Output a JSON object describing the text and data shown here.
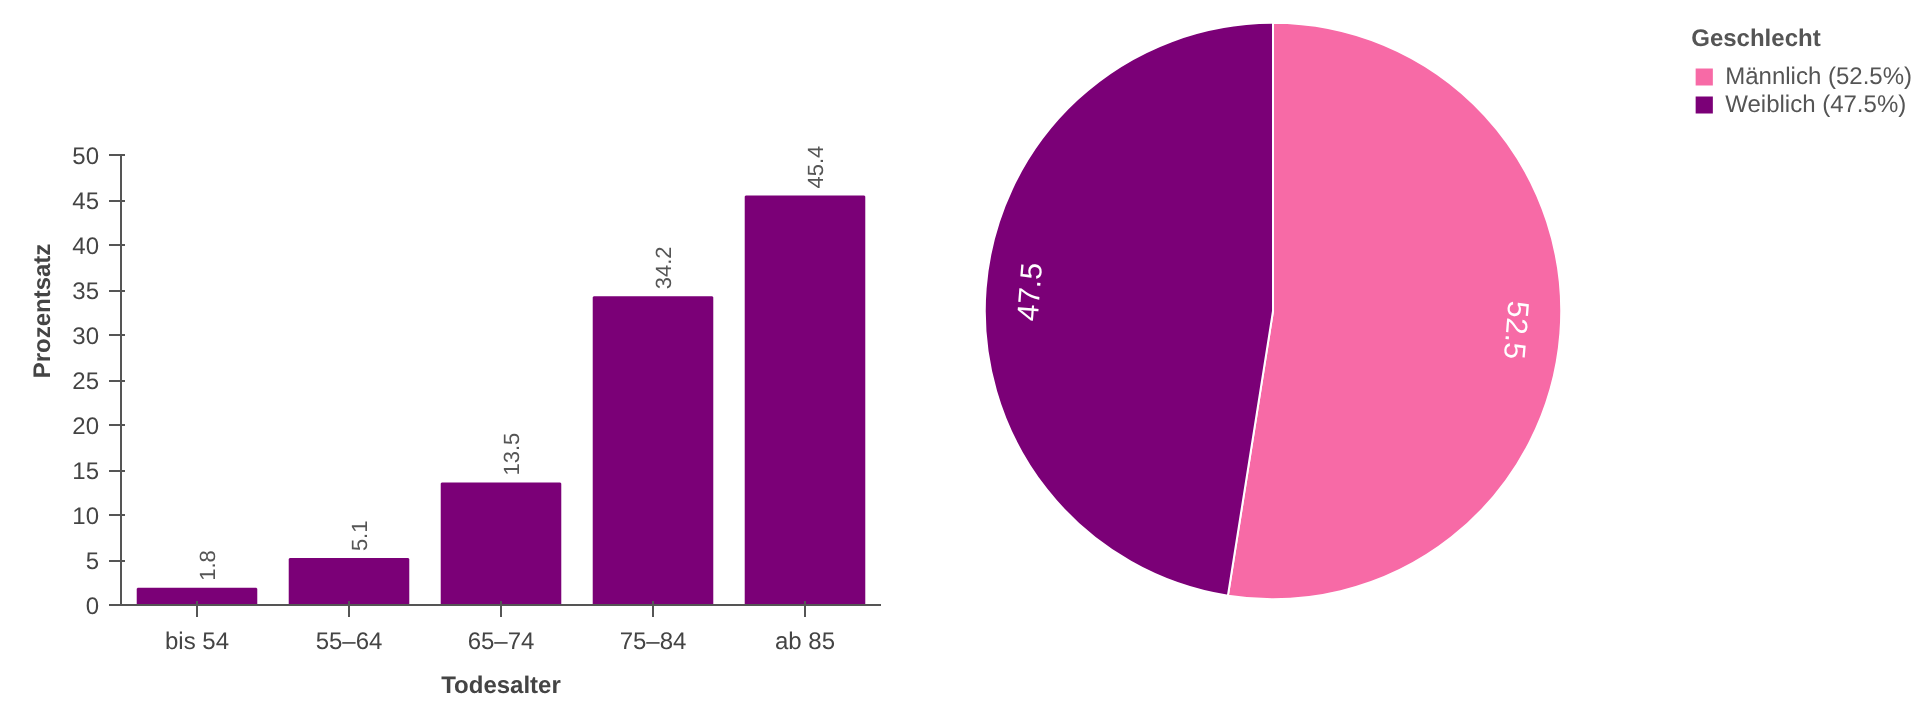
{
  "chart_data": [
    {
      "type": "bar",
      "xlabel": "Todesalter",
      "ylabel": "Prozentsatz",
      "categories": [
        "bis 54",
        "55–64",
        "65–74",
        "75–84",
        "ab 85"
      ],
      "values": [
        1.8,
        5.1,
        13.5,
        34.2,
        45.4
      ],
      "color": "#7b0077",
      "ylim": [
        0,
        50
      ],
      "yticks": [
        0,
        5,
        10,
        15,
        20,
        25,
        30,
        35,
        40,
        45,
        50
      ],
      "grid": false,
      "data_labels": true
    },
    {
      "type": "pie",
      "legend_title": "Geschlecht",
      "categories": [
        "Männlich (52.5%)",
        "Weiblich (47.5%)"
      ],
      "values": [
        52.5,
        47.5
      ],
      "colors": [
        "#f76aa6",
        "#7b0077"
      ],
      "data_labels": true,
      "legend": "top right"
    }
  ]
}
